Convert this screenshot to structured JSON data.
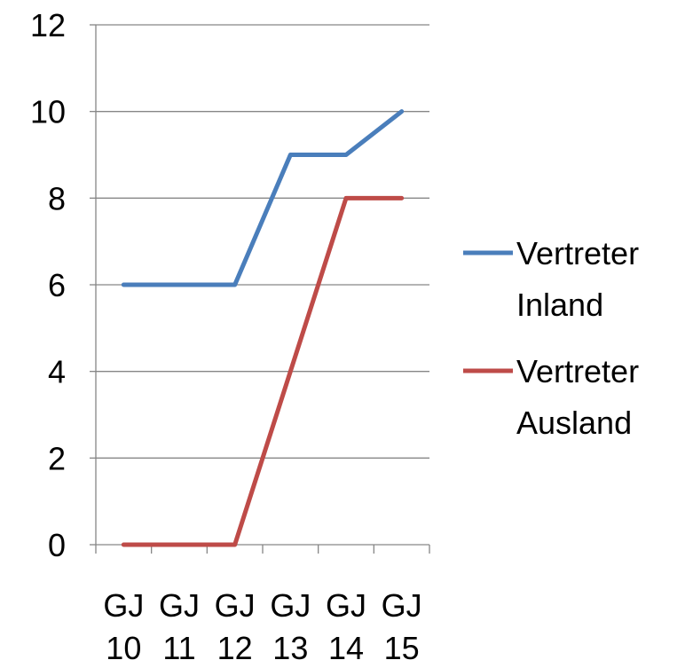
{
  "chart_data": {
    "type": "line",
    "title": "",
    "xlabel": "",
    "ylabel": "",
    "categories": [
      [
        "GJ",
        "10"
      ],
      [
        "GJ",
        "11"
      ],
      [
        "GJ",
        "12"
      ],
      [
        "GJ",
        "13"
      ],
      [
        "GJ",
        "14"
      ],
      [
        "GJ",
        "15"
      ]
    ],
    "ylim": [
      0,
      12
    ],
    "yticks": [
      0,
      2,
      4,
      6,
      8,
      10,
      12
    ],
    "grid": true,
    "legend_position": "right",
    "series": [
      {
        "name": [
          "Vertreter",
          "Inland"
        ],
        "color": "#4a7ebb",
        "values": [
          6,
          6,
          6,
          9,
          9,
          10
        ]
      },
      {
        "name": [
          "Vertreter",
          "Ausland"
        ],
        "color": "#be4b48",
        "values": [
          0,
          0,
          0,
          4,
          8,
          8
        ]
      }
    ]
  }
}
